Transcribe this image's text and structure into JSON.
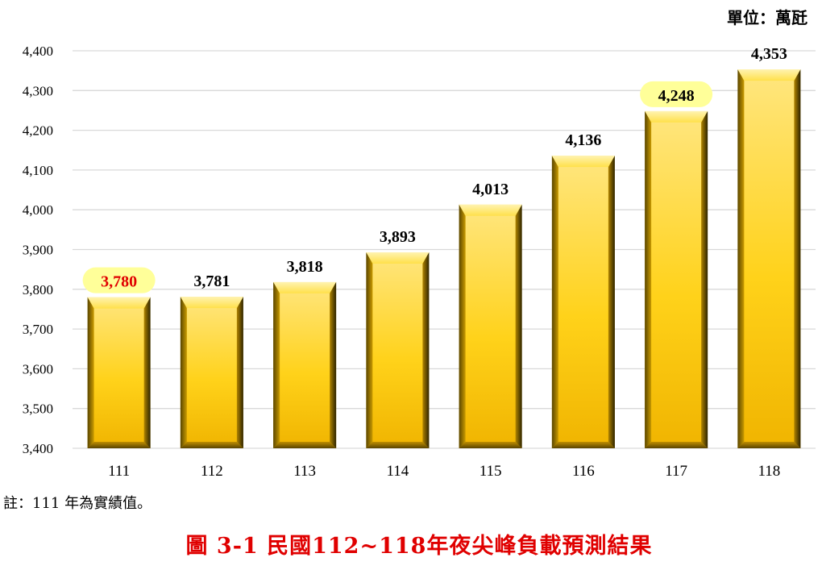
{
  "unit_label": "單位：萬瓩",
  "note": "註：111 年為實績值。",
  "caption": "圖 3-1  民國112~118年夜尖峰負載預測結果",
  "colors": {
    "bar_light": "#ffe466",
    "bar_mid": "#f2c200",
    "bar_dark": "#3a2e00",
    "highlight": "#ffff99",
    "actual_label": "#e00000",
    "grid": "#d9d9d9"
  },
  "chart_data": {
    "type": "bar",
    "categories": [
      "111",
      "112",
      "113",
      "114",
      "115",
      "116",
      "117",
      "118"
    ],
    "values": [
      3780,
      3781,
      3818,
      3893,
      4013,
      4136,
      4248,
      4353
    ],
    "value_labels": [
      "3,780",
      "3,781",
      "3,818",
      "3,893",
      "4,013",
      "4,136",
      "4,248",
      "4,353"
    ],
    "highlighted": [
      "111",
      "117"
    ],
    "actual": [
      "111"
    ],
    "ylim": [
      3400,
      4400
    ],
    "yticks": [
      3400,
      3500,
      3600,
      3700,
      3800,
      3900,
      4000,
      4100,
      4200,
      4300,
      4400
    ],
    "ytick_labels": [
      "3,400",
      "3,500",
      "3,600",
      "3,700",
      "3,800",
      "3,900",
      "4,000",
      "4,100",
      "4,200",
      "4,300",
      "4,400"
    ],
    "grid": true,
    "xlabel": "",
    "ylabel": ""
  }
}
